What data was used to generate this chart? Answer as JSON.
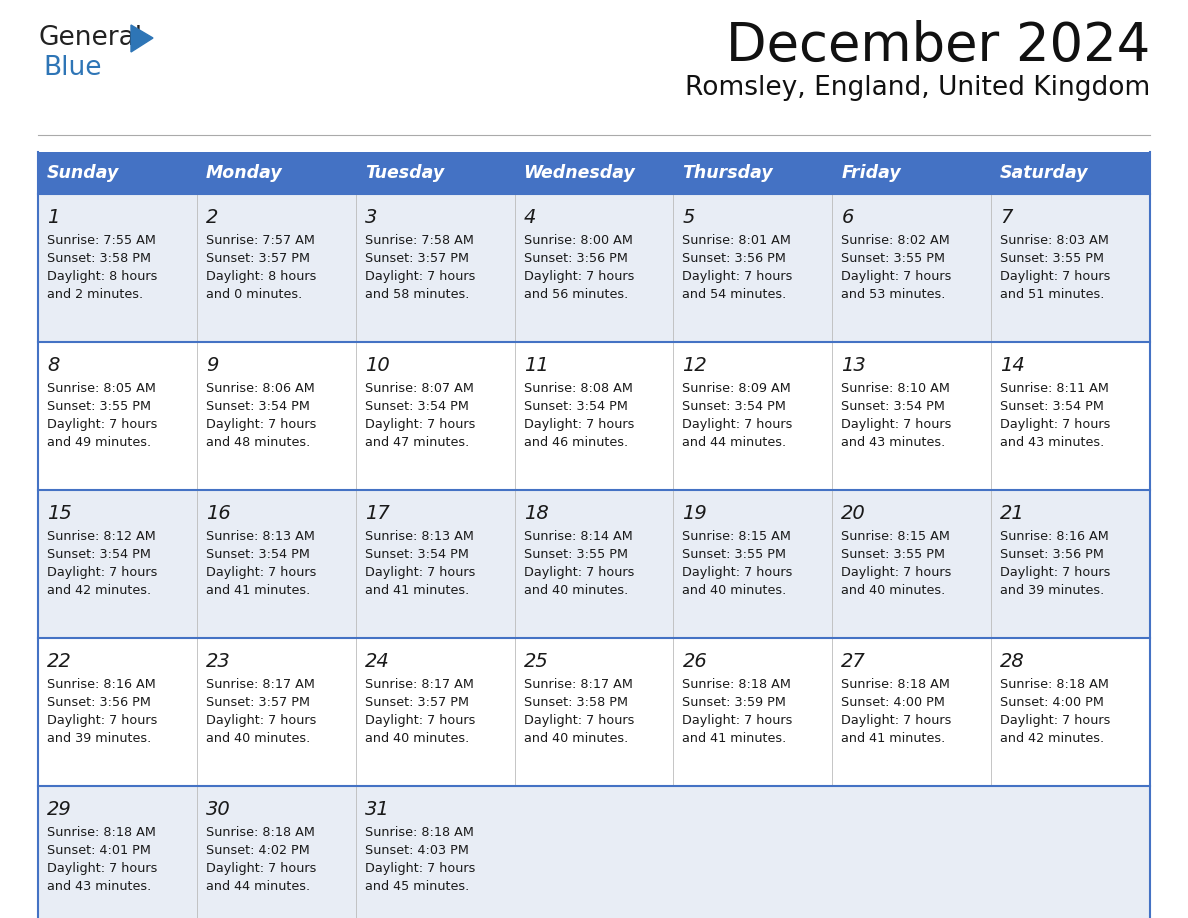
{
  "title": "December 2024",
  "subtitle": "Romsley, England, United Kingdom",
  "header_color": "#4472C4",
  "header_text_color": "#FFFFFF",
  "row0_bg": "#E8EDF5",
  "row1_bg": "#FFFFFF",
  "border_color": "#4472C4",
  "text_color": "#1a1a1a",
  "day_names": [
    "Sunday",
    "Monday",
    "Tuesday",
    "Wednesday",
    "Thursday",
    "Friday",
    "Saturday"
  ],
  "days": [
    {
      "day": 1,
      "col": 0,
      "row": 0,
      "sunrise": "7:55 AM",
      "sunset": "3:58 PM",
      "daylight_h": "8 hours",
      "daylight_m": "and 2 minutes."
    },
    {
      "day": 2,
      "col": 1,
      "row": 0,
      "sunrise": "7:57 AM",
      "sunset": "3:57 PM",
      "daylight_h": "8 hours",
      "daylight_m": "and 0 minutes."
    },
    {
      "day": 3,
      "col": 2,
      "row": 0,
      "sunrise": "7:58 AM",
      "sunset": "3:57 PM",
      "daylight_h": "7 hours",
      "daylight_m": "and 58 minutes."
    },
    {
      "day": 4,
      "col": 3,
      "row": 0,
      "sunrise": "8:00 AM",
      "sunset": "3:56 PM",
      "daylight_h": "7 hours",
      "daylight_m": "and 56 minutes."
    },
    {
      "day": 5,
      "col": 4,
      "row": 0,
      "sunrise": "8:01 AM",
      "sunset": "3:56 PM",
      "daylight_h": "7 hours",
      "daylight_m": "and 54 minutes."
    },
    {
      "day": 6,
      "col": 5,
      "row": 0,
      "sunrise": "8:02 AM",
      "sunset": "3:55 PM",
      "daylight_h": "7 hours",
      "daylight_m": "and 53 minutes."
    },
    {
      "day": 7,
      "col": 6,
      "row": 0,
      "sunrise": "8:03 AM",
      "sunset": "3:55 PM",
      "daylight_h": "7 hours",
      "daylight_m": "and 51 minutes."
    },
    {
      "day": 8,
      "col": 0,
      "row": 1,
      "sunrise": "8:05 AM",
      "sunset": "3:55 PM",
      "daylight_h": "7 hours",
      "daylight_m": "and 49 minutes."
    },
    {
      "day": 9,
      "col": 1,
      "row": 1,
      "sunrise": "8:06 AM",
      "sunset": "3:54 PM",
      "daylight_h": "7 hours",
      "daylight_m": "and 48 minutes."
    },
    {
      "day": 10,
      "col": 2,
      "row": 1,
      "sunrise": "8:07 AM",
      "sunset": "3:54 PM",
      "daylight_h": "7 hours",
      "daylight_m": "and 47 minutes."
    },
    {
      "day": 11,
      "col": 3,
      "row": 1,
      "sunrise": "8:08 AM",
      "sunset": "3:54 PM",
      "daylight_h": "7 hours",
      "daylight_m": "and 46 minutes."
    },
    {
      "day": 12,
      "col": 4,
      "row": 1,
      "sunrise": "8:09 AM",
      "sunset": "3:54 PM",
      "daylight_h": "7 hours",
      "daylight_m": "and 44 minutes."
    },
    {
      "day": 13,
      "col": 5,
      "row": 1,
      "sunrise": "8:10 AM",
      "sunset": "3:54 PM",
      "daylight_h": "7 hours",
      "daylight_m": "and 43 minutes."
    },
    {
      "day": 14,
      "col": 6,
      "row": 1,
      "sunrise": "8:11 AM",
      "sunset": "3:54 PM",
      "daylight_h": "7 hours",
      "daylight_m": "and 43 minutes."
    },
    {
      "day": 15,
      "col": 0,
      "row": 2,
      "sunrise": "8:12 AM",
      "sunset": "3:54 PM",
      "daylight_h": "7 hours",
      "daylight_m": "and 42 minutes."
    },
    {
      "day": 16,
      "col": 1,
      "row": 2,
      "sunrise": "8:13 AM",
      "sunset": "3:54 PM",
      "daylight_h": "7 hours",
      "daylight_m": "and 41 minutes."
    },
    {
      "day": 17,
      "col": 2,
      "row": 2,
      "sunrise": "8:13 AM",
      "sunset": "3:54 PM",
      "daylight_h": "7 hours",
      "daylight_m": "and 41 minutes."
    },
    {
      "day": 18,
      "col": 3,
      "row": 2,
      "sunrise": "8:14 AM",
      "sunset": "3:55 PM",
      "daylight_h": "7 hours",
      "daylight_m": "and 40 minutes."
    },
    {
      "day": 19,
      "col": 4,
      "row": 2,
      "sunrise": "8:15 AM",
      "sunset": "3:55 PM",
      "daylight_h": "7 hours",
      "daylight_m": "and 40 minutes."
    },
    {
      "day": 20,
      "col": 5,
      "row": 2,
      "sunrise": "8:15 AM",
      "sunset": "3:55 PM",
      "daylight_h": "7 hours",
      "daylight_m": "and 40 minutes."
    },
    {
      "day": 21,
      "col": 6,
      "row": 2,
      "sunrise": "8:16 AM",
      "sunset": "3:56 PM",
      "daylight_h": "7 hours",
      "daylight_m": "and 39 minutes."
    },
    {
      "day": 22,
      "col": 0,
      "row": 3,
      "sunrise": "8:16 AM",
      "sunset": "3:56 PM",
      "daylight_h": "7 hours",
      "daylight_m": "and 39 minutes."
    },
    {
      "day": 23,
      "col": 1,
      "row": 3,
      "sunrise": "8:17 AM",
      "sunset": "3:57 PM",
      "daylight_h": "7 hours",
      "daylight_m": "and 40 minutes."
    },
    {
      "day": 24,
      "col": 2,
      "row": 3,
      "sunrise": "8:17 AM",
      "sunset": "3:57 PM",
      "daylight_h": "7 hours",
      "daylight_m": "and 40 minutes."
    },
    {
      "day": 25,
      "col": 3,
      "row": 3,
      "sunrise": "8:17 AM",
      "sunset": "3:58 PM",
      "daylight_h": "7 hours",
      "daylight_m": "and 40 minutes."
    },
    {
      "day": 26,
      "col": 4,
      "row": 3,
      "sunrise": "8:18 AM",
      "sunset": "3:59 PM",
      "daylight_h": "7 hours",
      "daylight_m": "and 41 minutes."
    },
    {
      "day": 27,
      "col": 5,
      "row": 3,
      "sunrise": "8:18 AM",
      "sunset": "4:00 PM",
      "daylight_h": "7 hours",
      "daylight_m": "and 41 minutes."
    },
    {
      "day": 28,
      "col": 6,
      "row": 3,
      "sunrise": "8:18 AM",
      "sunset": "4:00 PM",
      "daylight_h": "7 hours",
      "daylight_m": "and 42 minutes."
    },
    {
      "day": 29,
      "col": 0,
      "row": 4,
      "sunrise": "8:18 AM",
      "sunset": "4:01 PM",
      "daylight_h": "7 hours",
      "daylight_m": "and 43 minutes."
    },
    {
      "day": 30,
      "col": 1,
      "row": 4,
      "sunrise": "8:18 AM",
      "sunset": "4:02 PM",
      "daylight_h": "7 hours",
      "daylight_m": "and 44 minutes."
    },
    {
      "day": 31,
      "col": 2,
      "row": 4,
      "sunrise": "8:18 AM",
      "sunset": "4:03 PM",
      "daylight_h": "7 hours",
      "daylight_m": "and 45 minutes."
    }
  ],
  "num_rows": 5,
  "logo_general_color": "#222222",
  "logo_blue_color": "#2E75B6",
  "logo_triangle_color": "#2E75B6"
}
